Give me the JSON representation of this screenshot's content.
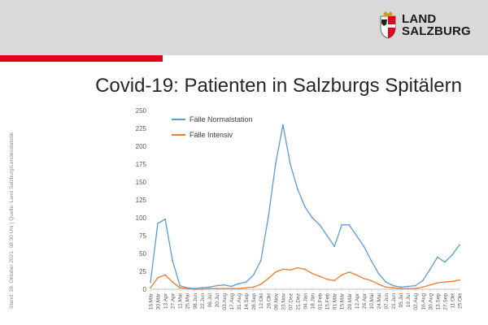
{
  "header": {
    "logo_text_line1": "LAND",
    "logo_text_line2": "SALZBURG"
  },
  "page": {
    "title": "Covid-19: Patienten in Salzburgs Spitälern",
    "side_note": "Stand: 28. Oktober 2021, 08.30 Uhr | Quelle: Land Salzburg/Landesstatistik"
  },
  "colors": {
    "accent": "#e2001a",
    "normal": "#5b9bd5",
    "intensive": "#ed7d31",
    "axis": "#bfbfbf"
  },
  "chart_data": {
    "type": "line",
    "x": [
      "16.Mär",
      "30.Mär",
      "13.Apr",
      "27.Apr",
      "11.Mai",
      "25.Mai",
      "08.Jun",
      "22.Jun",
      "06.Jul",
      "20.Jul",
      "03.Aug",
      "17.Aug",
      "31.Aug",
      "14.Sep",
      "28.Sep",
      "12.Okt",
      "26.Okt",
      "09.Nov",
      "23.Nov",
      "07.Dez",
      "21.Dez",
      "04.Jän",
      "18.Jän",
      "01.Feb",
      "15.Feb",
      "01.Mär",
      "15.Mär",
      "29.Mär",
      "12.Apr",
      "26.Apr",
      "10.Mai",
      "24.Mai",
      "07.Jun",
      "21.Jun",
      "05.Jul",
      "19.Jul",
      "02.Aug",
      "16.Aug",
      "30.Aug",
      "13.Sep",
      "27.Sep",
      "11.Okt",
      "25.Okt"
    ],
    "ylim": [
      0,
      250
    ],
    "yticks": [
      0,
      25,
      50,
      75,
      100,
      125,
      150,
      175,
      200,
      225,
      250
    ],
    "legend_position": "top-left",
    "grid": false,
    "series": [
      {
        "name": "Fälle Normalstation",
        "color": "#5b9bd5",
        "values": [
          10,
          92,
          98,
          40,
          5,
          2,
          1,
          2,
          3,
          5,
          6,
          4,
          8,
          10,
          20,
          40,
          100,
          175,
          230,
          175,
          140,
          115,
          100,
          90,
          75,
          60,
          90,
          90,
          75,
          60,
          40,
          22,
          10,
          5,
          3,
          4,
          5,
          12,
          28,
          45,
          38,
          48,
          62
        ]
      },
      {
        "name": "Fälle Intensiv",
        "color": "#ed7d31",
        "values": [
          2,
          16,
          20,
          10,
          2,
          1,
          0,
          0,
          1,
          1,
          1,
          1,
          1,
          2,
          3,
          7,
          15,
          24,
          28,
          27,
          30,
          28,
          22,
          18,
          14,
          12,
          20,
          24,
          20,
          15,
          12,
          7,
          3,
          2,
          1,
          1,
          1,
          3,
          6,
          9,
          10,
          11,
          13
        ]
      }
    ]
  }
}
